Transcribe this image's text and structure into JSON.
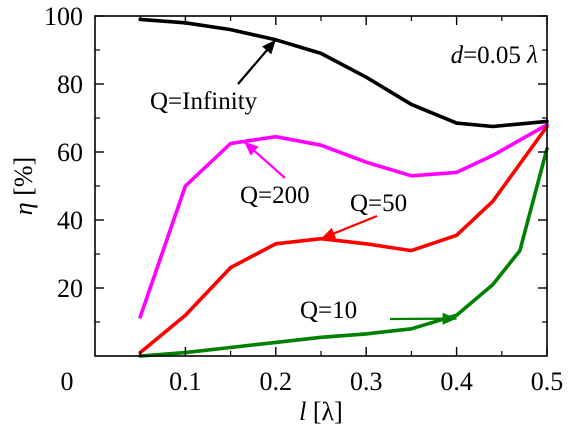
{
  "chart_data": {
    "type": "line",
    "xlabel": "l [λ]",
    "xlabel_parts": {
      "var": "l",
      "unit": " [λ]"
    },
    "ylabel": "η [%]",
    "ylabel_parts": {
      "var": "η",
      "unit": " [%]"
    },
    "xlim": [
      0.0,
      0.5
    ],
    "ylim": [
      0,
      100
    ],
    "x_ticks": [
      {
        "value": 0.1,
        "label": "0.1"
      },
      {
        "value": 0.2,
        "label": "0.2"
      },
      {
        "value": 0.3,
        "label": "0.3"
      },
      {
        "value": 0.4,
        "label": "0.4"
      },
      {
        "value": 0.5,
        "label": "0.5"
      }
    ],
    "y_ticks": [
      {
        "value": 20,
        "label": "20"
      },
      {
        "value": 40,
        "label": "40"
      },
      {
        "value": 60,
        "label": "60"
      },
      {
        "value": 80,
        "label": "80"
      },
      {
        "value": 100,
        "label": "100"
      }
    ],
    "origin_label": "0",
    "grid": "none",
    "legend": "none",
    "annotation_main": {
      "prefix": "d",
      "middle": "=0.05 ",
      "suffix": "λ"
    },
    "series": [
      {
        "name": "Q=Infinity",
        "color": "#000000",
        "x": [
          0.05,
          0.1,
          0.15,
          0.2,
          0.25,
          0.3,
          0.35,
          0.4,
          0.44,
          0.5
        ],
        "values": [
          99,
          98,
          96,
          93,
          89,
          82,
          74,
          68.5,
          67.5,
          69
        ]
      },
      {
        "name": "Q=200",
        "color": "#ff00ff",
        "x": [
          0.05,
          0.1,
          0.15,
          0.2,
          0.25,
          0.3,
          0.35,
          0.4,
          0.44,
          0.5
        ],
        "values": [
          11.5,
          50,
          62.5,
          64.5,
          62,
          57,
          53,
          54,
          59,
          68
        ]
      },
      {
        "name": "Q=50",
        "color": "#ff0000",
        "x": [
          0.05,
          0.1,
          0.15,
          0.2,
          0.25,
          0.3,
          0.35,
          0.4,
          0.44,
          0.5
        ],
        "values": [
          1,
          12,
          26,
          33,
          34.5,
          33,
          31,
          35.5,
          45.5,
          67.5
        ]
      },
      {
        "name": "Q=10",
        "color": "#008000",
        "x": [
          0.05,
          0.1,
          0.15,
          0.2,
          0.25,
          0.3,
          0.35,
          0.4,
          0.44,
          0.47,
          0.5
        ],
        "values": [
          0,
          1,
          2.5,
          4,
          5.5,
          6.5,
          8,
          12,
          21,
          31,
          61
        ]
      }
    ]
  }
}
